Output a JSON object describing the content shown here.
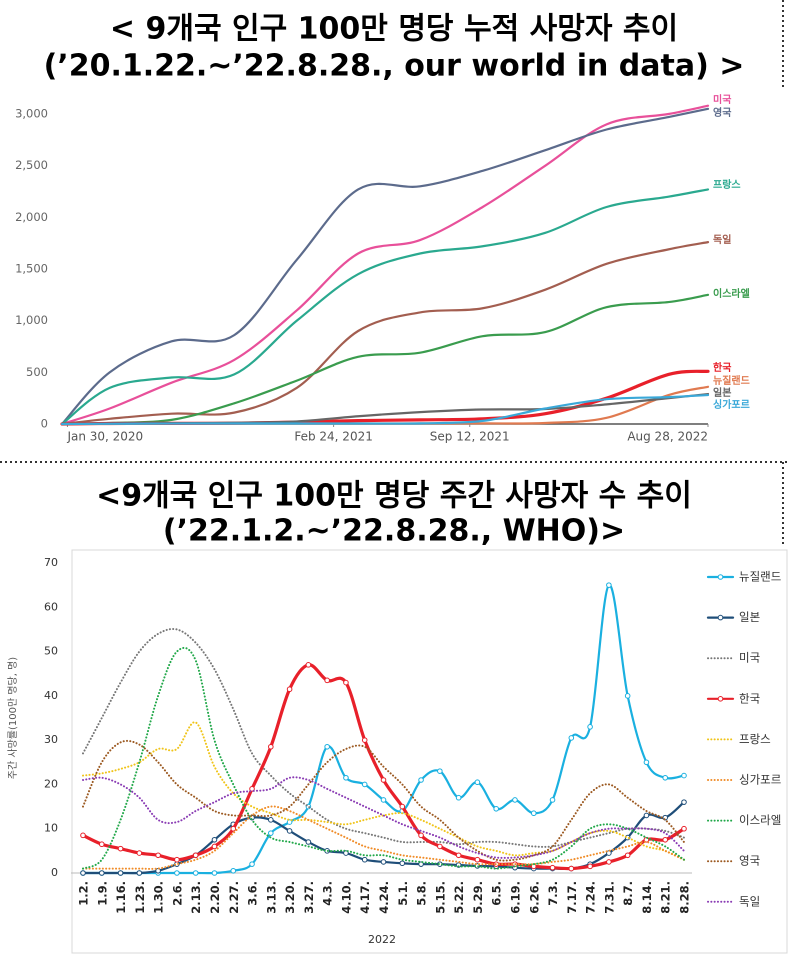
{
  "chart_data": [
    {
      "type": "line",
      "title": "< 9개국 인구 100만 명당 누적 사망자 추이",
      "subtitle": "(’20.1.22.~’22.8.28., our world in data) >",
      "x": [
        "2020-01-22",
        "2020-04-01",
        "2020-07-01",
        "2020-10-01",
        "2021-01-01",
        "2021-04-01",
        "2021-07-01",
        "2021-10-01",
        "2022-01-01",
        "2022-04-01",
        "2022-07-01",
        "2022-08-28"
      ],
      "xlim": [
        "2020-01-22",
        "2022-08-28"
      ],
      "xticks": [
        {
          "value": "2020-01-30",
          "label": "Jan 30, 2020"
        },
        {
          "value": "2021-02-24",
          "label": "Feb 24, 2021"
        },
        {
          "value": "2021-09-12",
          "label": "Sep 12, 2021"
        },
        {
          "value": "2022-08-28",
          "label": "Aug 28, 2022"
        }
      ],
      "ylim": [
        0,
        3000
      ],
      "yticks": [
        0,
        500,
        {
          "value": 1000,
          "label": "1,000"
        },
        {
          "value": 1500,
          "label": "1,500"
        },
        {
          "value": 2000,
          "label": "2,000"
        },
        {
          "value": 2500,
          "label": "2,500"
        },
        {
          "value": 3000,
          "label": "3,000"
        }
      ],
      "series": [
        {
          "name": "미국",
          "color": "#e8509a",
          "values": [
            0,
            150,
            400,
            620,
            1100,
            1650,
            1780,
            2100,
            2500,
            2900,
            3000,
            3080
          ]
        },
        {
          "name": "영국",
          "color": "#5c6b8c",
          "values": [
            0,
            500,
            800,
            860,
            1590,
            2270,
            2300,
            2450,
            2650,
            2850,
            2970,
            3050
          ]
        },
        {
          "name": "프랑스",
          "color": "#2aa98f",
          "values": [
            0,
            350,
            450,
            480,
            1000,
            1450,
            1650,
            1720,
            1850,
            2100,
            2200,
            2270
          ]
        },
        {
          "name": "독일",
          "color": "#a35e50",
          "values": [
            0,
            50,
            100,
            110,
            350,
            900,
            1080,
            1120,
            1300,
            1550,
            1690,
            1760
          ]
        },
        {
          "name": "이스라엘",
          "color": "#3a9c4e",
          "values": [
            0,
            10,
            40,
            200,
            420,
            650,
            690,
            850,
            890,
            1130,
            1180,
            1250
          ]
        },
        {
          "name": "한국",
          "color": "#e8202a",
          "values": [
            0,
            5,
            6,
            8,
            18,
            33,
            40,
            50,
            100,
            250,
            480,
            510
          ]
        },
        {
          "name": "뉴질랜드",
          "color": "#e07a50",
          "values": [
            0,
            3,
            4,
            5,
            5,
            5,
            5,
            6,
            10,
            60,
            280,
            360
          ]
        },
        {
          "name": "일본",
          "color": "#666666",
          "values": [
            0,
            5,
            8,
            12,
            25,
            75,
            115,
            140,
            145,
            190,
            250,
            290
          ]
        },
        {
          "name": "싱가포르",
          "color": "#3aa8d8",
          "values": [
            0,
            2,
            4,
            5,
            5,
            5,
            6,
            30,
            150,
            240,
            260,
            280
          ]
        }
      ]
    },
    {
      "type": "line",
      "title": "<9개국 인구 100만 명당 주간 사망자 수 추이",
      "subtitle": "(’22.1.2.~’22.8.28., WHO)>",
      "x_label": "2022",
      "y_label": "주간 사망률(100만 명당, 명)",
      "categories": [
        "1.2.",
        "1.9.",
        "1.16.",
        "1.23.",
        "1.30.",
        "2.6.",
        "2.13.",
        "2.20.",
        "2.27.",
        "3.6.",
        "3.13.",
        "3.20.",
        "3.27.",
        "4.3.",
        "4.10.",
        "4.17.",
        "4.24.",
        "5.1.",
        "5.8.",
        "5.15.",
        "5.22.",
        "5.29.",
        "6.5.",
        "6.19.",
        "6.26.",
        "7.3.",
        "7.17.",
        "7.24.",
        "7.31.",
        "8.7.",
        "8.14.",
        "8.21.",
        "8.28."
      ],
      "ylim": [
        0,
        70
      ],
      "yticks": [
        0,
        10,
        20,
        30,
        40,
        50,
        60,
        70
      ],
      "series": [
        {
          "name": "뉴질랜드",
          "color": "#1ab0e0",
          "style": "solid",
          "marker": true,
          "values": [
            0,
            0,
            0,
            0,
            0,
            0,
            0,
            0,
            0.5,
            2,
            9,
            11.5,
            15,
            28.5,
            21.5,
            20,
            16.5,
            14,
            21,
            23,
            17,
            20.5,
            14.5,
            16.5,
            13.5,
            16.5,
            30.5,
            33,
            65,
            40,
            25,
            21.5,
            22
          ]
        },
        {
          "name": "일본",
          "color": "#1f4e79",
          "style": "solid",
          "marker": true,
          "values": [
            0,
            0,
            0,
            0,
            0.5,
            2,
            4,
            7.5,
            11,
            12.5,
            12,
            9.5,
            7,
            5,
            4.5,
            3,
            2.5,
            2.2,
            2,
            2,
            1.8,
            1.6,
            1.5,
            1.2,
            1,
            1,
            1,
            2,
            4.5,
            8,
            13,
            12.5,
            16
          ]
        },
        {
          "name": "미국",
          "color": "#777777",
          "style": "dotted",
          "marker": false,
          "values": [
            27,
            35,
            43,
            50,
            54,
            55,
            52,
            46,
            37,
            27,
            22,
            18,
            15,
            12,
            10,
            9,
            8,
            7,
            7,
            7,
            6.5,
            7,
            7,
            6.5,
            6,
            6,
            7,
            8,
            9,
            10,
            10,
            9.5,
            8
          ]
        },
        {
          "name": "한국",
          "color": "#e8202a",
          "style": "solid",
          "marker": true,
          "values": [
            8.5,
            6.5,
            5.5,
            4.5,
            4,
            3,
            4,
            6,
            10,
            19,
            28.5,
            41.5,
            47,
            43.5,
            43,
            30,
            21,
            15,
            8.5,
            6,
            4,
            3,
            2,
            2,
            1.5,
            1.2,
            1,
            1.5,
            2.5,
            4,
            7.5,
            7.5,
            10
          ]
        },
        {
          "name": "프랑스",
          "color": "#f0c419",
          "style": "dotted",
          "marker": false,
          "values": [
            22,
            22.5,
            23.5,
            25,
            28,
            28,
            34,
            24,
            18,
            15,
            13.5,
            12,
            12,
            11.5,
            11,
            12,
            13,
            13.5,
            12,
            10,
            8,
            6,
            5,
            4,
            4.5,
            5,
            7,
            9,
            9.5,
            8,
            6,
            5,
            3
          ]
        },
        {
          "name": "싱가포르",
          "color": "#f08c28",
          "style": "dotted",
          "marker": false,
          "values": [
            1,
            1,
            1,
            1,
            1,
            2,
            3,
            5,
            9,
            13,
            15,
            14,
            12,
            10,
            8,
            6,
            5,
            4,
            3.5,
            3,
            2.5,
            2,
            2,
            2,
            2,
            2.5,
            3,
            4,
            5,
            6,
            7,
            5,
            3
          ]
        },
        {
          "name": "이스라엘",
          "color": "#22a84a",
          "style": "dotted",
          "marker": false,
          "values": [
            1,
            3,
            12,
            25,
            40,
            50,
            48,
            30,
            20,
            12,
            8,
            7,
            6,
            5,
            5,
            4,
            4,
            3,
            2.5,
            2,
            1.5,
            1.5,
            1,
            1.5,
            2,
            3,
            6,
            10,
            11,
            10,
            8,
            6,
            3
          ]
        },
        {
          "name": "영국",
          "color": "#9c5a22",
          "style": "dotted",
          "marker": false,
          "values": [
            15,
            25,
            29.5,
            29,
            25,
            20,
            17,
            14,
            13,
            13,
            13,
            15,
            20,
            25,
            28,
            28.5,
            24,
            20,
            15,
            12,
            8,
            5,
            3,
            3,
            4,
            6,
            12,
            18,
            20,
            17,
            14,
            12,
            7
          ]
        },
        {
          "name": "독일",
          "color": "#8a3cb4",
          "style": "dotted",
          "marker": false,
          "values": [
            21,
            21.5,
            20,
            17,
            12,
            11.5,
            14,
            16,
            18,
            18.5,
            19,
            21.5,
            21,
            19,
            17,
            15,
            13,
            11,
            9.5,
            8,
            6,
            4.5,
            3.5,
            3.5,
            4,
            5,
            7,
            9,
            10,
            10,
            10,
            9,
            5
          ]
        }
      ]
    }
  ]
}
